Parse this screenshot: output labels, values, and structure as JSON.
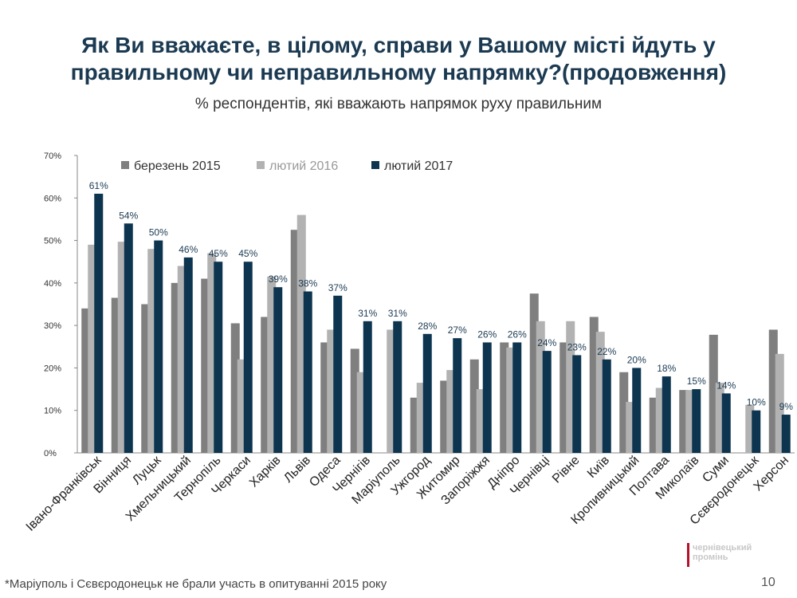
{
  "slide": {
    "title_line1": "Як Ви вважаєте, в цілому, справи у Вашому місті йдуть у",
    "title_line2": "правильному чи неправильному напрямку?(продовження)",
    "subtitle": "% респондентів, які вважають напрямок руху правильним",
    "footnote": "*Маріуполь і Сєвєродонецьк не брали участь в опитуванні 2015 року",
    "page_number": "10",
    "logo_line1": "чернівецький",
    "logo_line2": "промінь"
  },
  "chart_data": {
    "type": "bar",
    "title": "% респондентів, які вважають напрямок руху правильним",
    "xlabel": "",
    "ylabel": "",
    "ylim": [
      0,
      70
    ],
    "y_ticks": [
      "0%",
      "10%",
      "20%",
      "30%",
      "40%",
      "50%",
      "60%",
      "70%"
    ],
    "legend_position": "top-left",
    "categories": [
      "Івано-Франківськ",
      "Вінниця",
      "Луцьк",
      "Хмельницький",
      "Тернопіль",
      "Черкаси",
      "Харків",
      "Львів",
      "Одеса",
      "Чернігів",
      "Маріуполь",
      "Ужгород",
      "Житомир",
      "Запоріжжя",
      "Дніпро",
      "Чернівці",
      "Рівне",
      "Київ",
      "Кропивницький",
      "Полтава",
      "Миколаїв",
      "Суми",
      "Сєвєродонецьк",
      "Херсон"
    ],
    "series": [
      {
        "name": "березень 2015",
        "color": "#7f7f7f",
        "values": [
          34,
          36.5,
          35,
          40,
          41,
          30.5,
          32,
          52.5,
          26,
          24.5,
          null,
          13,
          17,
          22,
          26,
          37.5,
          26,
          32,
          19,
          13,
          14.8,
          27.8,
          null,
          29
        ]
      },
      {
        "name": "лютий 2016",
        "color": "#b2b2b2",
        "values": [
          49,
          49.7,
          48,
          44,
          47,
          22,
          41.5,
          56,
          29,
          19,
          29,
          16.5,
          19.5,
          15,
          24.8,
          31,
          31,
          28.5,
          12,
          15.3,
          14.8,
          16.5,
          11.3,
          23.3
        ]
      },
      {
        "name": "лютий 2017",
        "color": "#0d3550",
        "values": [
          61,
          54,
          50,
          46,
          45,
          45,
          39,
          38,
          37,
          31,
          31,
          28,
          27,
          26,
          26,
          24,
          23,
          22,
          20,
          18,
          15,
          14,
          10,
          9
        ],
        "labels": [
          "61%",
          "54%",
          "50%",
          "46%",
          "45%",
          "45%",
          "39%",
          "38%",
          "37%",
          "31%",
          "31%",
          "28%",
          "27%",
          "26%",
          "26%",
          "24%",
          "23%",
          "22%",
          "20%",
          "18%",
          "15%",
          "14%",
          "10%",
          "9%"
        ]
      }
    ]
  }
}
